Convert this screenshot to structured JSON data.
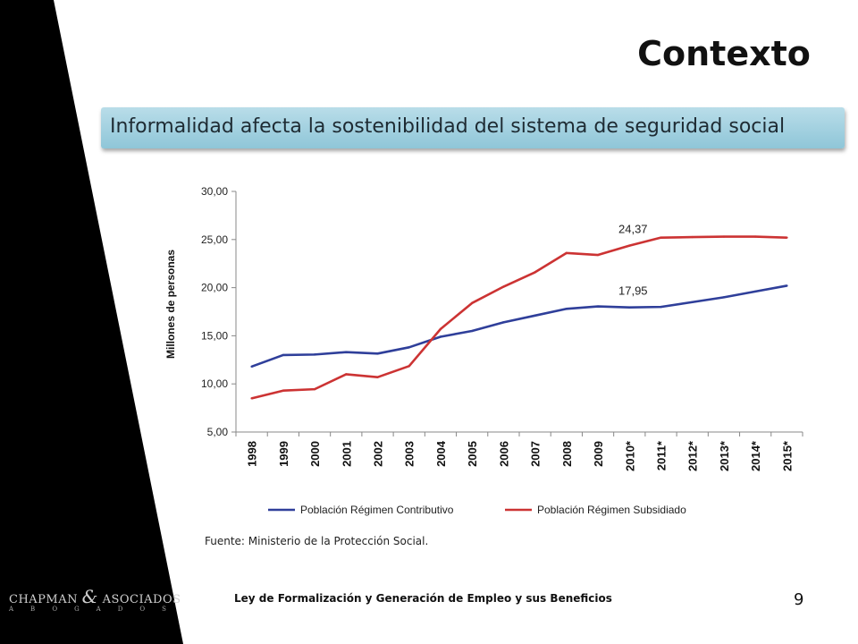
{
  "slide": {
    "title": "Contexto",
    "banner": "Informalidad afecta la sostenibilidad del sistema de seguridad social",
    "source": "Fuente: Ministerio de la Protección Social.",
    "footer": "Ley de Formalización y Generación de Empleo y sus Beneficios",
    "page_number": "9",
    "logo": {
      "name_left": "CHAPMAN",
      "ampersand": "&",
      "name_right": "ASOCIADOS",
      "subtitle": "ABOGADOS"
    }
  },
  "colors": {
    "background": "#ffffff",
    "dark_band": "#000000",
    "banner": "#a8d3e2",
    "contributivo": "#2f3f9a",
    "subsidiado": "#cc3333"
  },
  "chart_data": {
    "type": "line",
    "title": "",
    "xlabel": "",
    "ylabel": "Millones de personas",
    "ylim": [
      5,
      30
    ],
    "yticks": [
      "5,00",
      "10,00",
      "15,00",
      "20,00",
      "25,00",
      "30,00"
    ],
    "categories": [
      "1998",
      "1999",
      "2000",
      "2001",
      "2002",
      "2003",
      "2004",
      "2005",
      "2006",
      "2007",
      "2008",
      "2009",
      "2010*",
      "2011*",
      "2012*",
      "2013*",
      "2014*",
      "2015*"
    ],
    "series": [
      {
        "name": "Población Régimen Contributivo",
        "color": "#2f3f9a",
        "values": [
          11.8,
          13.0,
          13.05,
          13.3,
          13.15,
          13.8,
          14.9,
          15.5,
          16.4,
          17.1,
          17.8,
          18.05,
          17.95,
          18.0,
          18.5,
          19.0,
          19.6,
          20.2
        ]
      },
      {
        "name": "Población Régimen Subsidiado",
        "color": "#cc3333",
        "values": [
          8.5,
          9.3,
          9.45,
          11.0,
          10.7,
          11.85,
          15.7,
          18.4,
          20.1,
          21.6,
          23.6,
          23.4,
          24.37,
          25.2,
          25.25,
          25.3,
          25.3,
          25.2
        ]
      }
    ],
    "annotations": [
      {
        "text": "24,37",
        "series": 1,
        "category": "2010*"
      },
      {
        "text": "17,95",
        "series": 0,
        "category": "2010*"
      }
    ],
    "legend": "bottom",
    "grid": false
  }
}
